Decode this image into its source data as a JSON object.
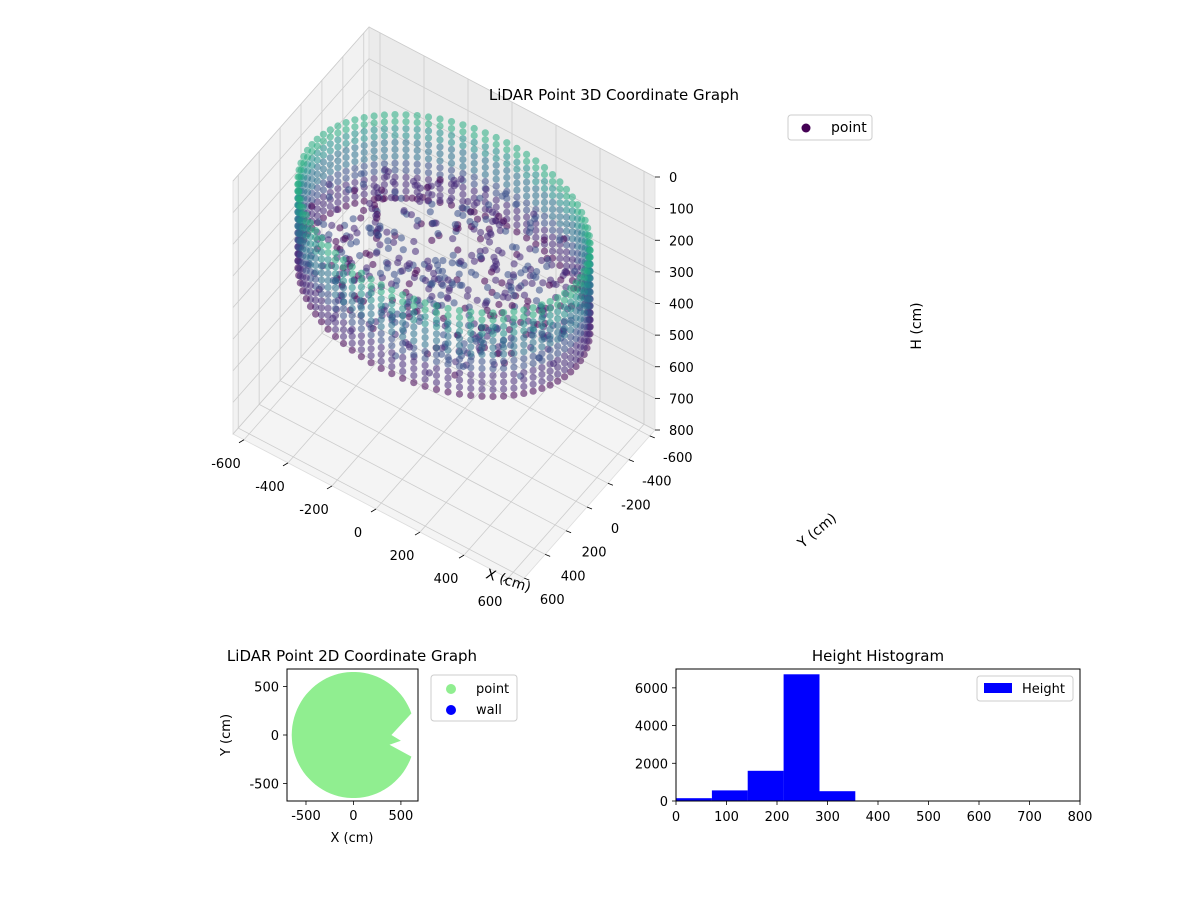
{
  "chart_data": [
    {
      "type": "scatter",
      "projection": "3d",
      "title": "LiDAR Point 3D Coordinate Graph",
      "xlabel": "X (cm)",
      "ylabel": "Y (cm)",
      "zlabel": "H (cm)",
      "xlim": [
        -650,
        650
      ],
      "ylim": [
        -650,
        650
      ],
      "zlim": [
        800,
        0
      ],
      "xticks": [
        "-600",
        "-400",
        "-200",
        "0",
        "200",
        "400",
        "600"
      ],
      "yticks": [
        "-600",
        "-400",
        "-200",
        "0",
        "200",
        "400",
        "600"
      ],
      "zticks": [
        "0",
        "100",
        "200",
        "300",
        "400",
        "500",
        "600",
        "700",
        "800"
      ],
      "grid": true,
      "legend": {
        "position": "top-right",
        "entries": [
          "point"
        ]
      },
      "colormap": "viridis (dark purple to teal by height)",
      "series": [
        {
          "name": "point",
          "shape": "ring wall of points, radius ~600 cm, heights ~150-350 cm, with interior scan points",
          "ring_radius": 600,
          "height_range": [
            150,
            350
          ]
        }
      ]
    },
    {
      "type": "scatter",
      "title": "LiDAR Point 2D Coordinate Graph",
      "xlabel": "X (cm)",
      "ylabel": "Y (cm)",
      "xlim": [
        -700,
        680
      ],
      "ylim": [
        -680,
        680
      ],
      "xticks": [
        "-500",
        "0",
        "500"
      ],
      "yticks": [
        "-500",
        "0",
        "500"
      ],
      "legend": {
        "position": "outside-right",
        "entries": [
          "point",
          "wall"
        ]
      },
      "series": [
        {
          "name": "point",
          "color": "#90ee90",
          "shape": "filled disc radius ~650 cm with notch on right side"
        },
        {
          "name": "wall",
          "color": "#0000ff",
          "points": []
        }
      ]
    },
    {
      "type": "bar",
      "subtype": "histogram",
      "title": "Height Histogram",
      "xlim": [
        0,
        800
      ],
      "ylim": [
        0,
        7000
      ],
      "xticks": [
        "0",
        "100",
        "200",
        "300",
        "400",
        "500",
        "600",
        "700",
        "800"
      ],
      "yticks": [
        "0",
        "2000",
        "4000",
        "6000"
      ],
      "legend": {
        "position": "top-right",
        "entries": [
          "Height"
        ]
      },
      "color": "#0000ff",
      "bins": [
        {
          "x0": 0,
          "x1": 71,
          "value": 150
        },
        {
          "x0": 71,
          "x1": 142,
          "value": 560
        },
        {
          "x0": 142,
          "x1": 213,
          "value": 1600
        },
        {
          "x0": 213,
          "x1": 284,
          "value": 6720
        },
        {
          "x0": 284,
          "x1": 355,
          "value": 520
        },
        {
          "x0": 355,
          "x1": 426,
          "value": 0
        },
        {
          "x0": 426,
          "x1": 497,
          "value": 0
        },
        {
          "x0": 497,
          "x1": 568,
          "value": 0
        },
        {
          "x0": 568,
          "x1": 639,
          "value": 0
        },
        {
          "x0": 639,
          "x1": 710,
          "value": 0
        },
        {
          "x0": 710,
          "x1": 781,
          "value": 0
        }
      ]
    }
  ]
}
